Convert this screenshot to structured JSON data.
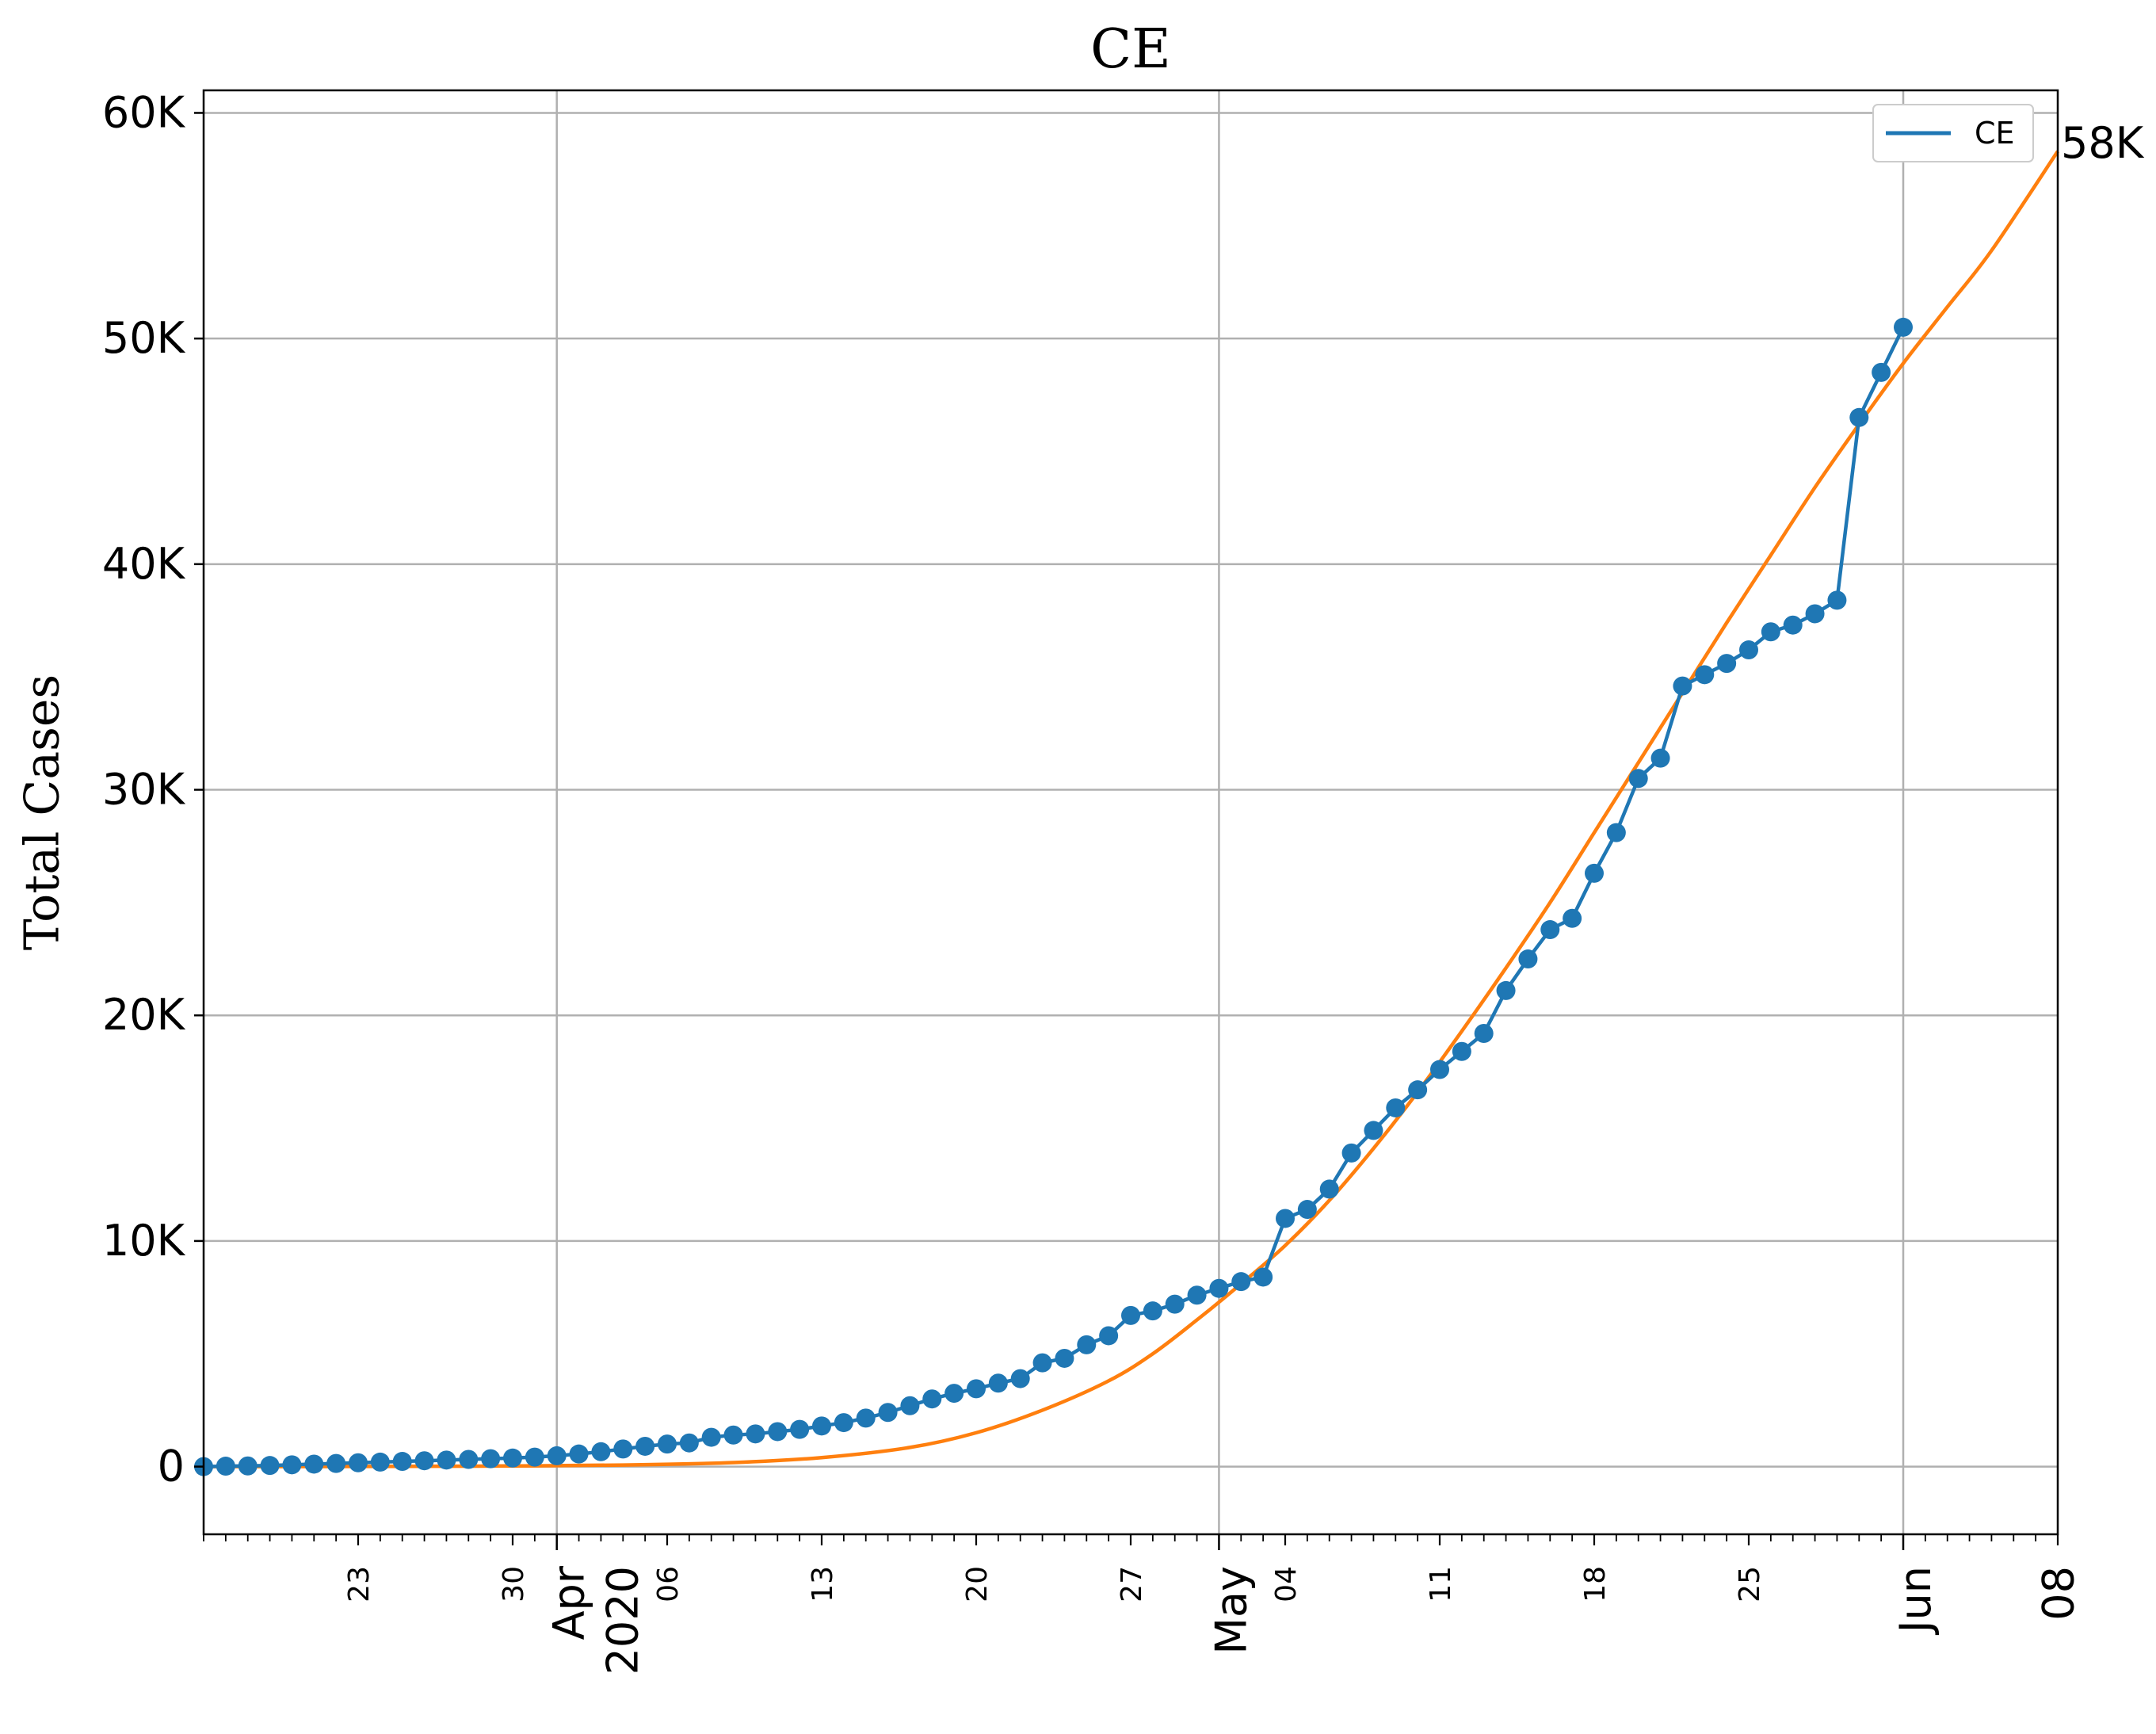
{
  "chart_data": {
    "type": "line",
    "title": "CE",
    "xlabel": "",
    "ylabel": "Total Cases",
    "x_range": [
      "2020-03-16",
      "2020-06-08"
    ],
    "ylim": [
      -3000,
      61000
    ],
    "y_ticks": [
      {
        "value": 0,
        "label": "0"
      },
      {
        "value": 10000,
        "label": "10K"
      },
      {
        "value": 20000,
        "label": "20K"
      },
      {
        "value": 30000,
        "label": "30K"
      },
      {
        "value": 40000,
        "label": "40K"
      },
      {
        "value": 50000,
        "label": "50K"
      },
      {
        "value": 60000,
        "label": "60K"
      }
    ],
    "x_minor_labels": [
      {
        "date": "2020-03-23",
        "label": "23"
      },
      {
        "date": "2020-03-30",
        "label": "30"
      },
      {
        "date": "2020-04-06",
        "label": "06"
      },
      {
        "date": "2020-04-13",
        "label": "13"
      },
      {
        "date": "2020-04-20",
        "label": "20"
      },
      {
        "date": "2020-04-27",
        "label": "27"
      },
      {
        "date": "2020-05-04",
        "label": "04"
      },
      {
        "date": "2020-05-11",
        "label": "11"
      },
      {
        "date": "2020-05-18",
        "label": "18"
      },
      {
        "date": "2020-05-25",
        "label": "25"
      },
      {
        "date": "2020-06-08",
        "label": "08"
      }
    ],
    "x_major_labels": [
      {
        "date": "2020-04-01",
        "label": "Apr\n2020"
      },
      {
        "date": "2020-05-01",
        "label": "May"
      },
      {
        "date": "2020-06-01",
        "label": "Jun"
      }
    ],
    "grid": true,
    "legend": {
      "position": "top-right",
      "entries": [
        "CE"
      ]
    },
    "end_annotation": "58K",
    "colors": {
      "observed": "#1f77b4",
      "fit": "#ff7f0e",
      "grid": "#b0b0b0"
    },
    "series": [
      {
        "name": "CE",
        "kind": "observed",
        "x": [
          "2020-03-16",
          "2020-03-17",
          "2020-03-18",
          "2020-03-19",
          "2020-03-20",
          "2020-03-21",
          "2020-03-22",
          "2020-03-23",
          "2020-03-24",
          "2020-03-25",
          "2020-03-26",
          "2020-03-27",
          "2020-03-28",
          "2020-03-29",
          "2020-03-30",
          "2020-03-31",
          "2020-04-01",
          "2020-04-02",
          "2020-04-03",
          "2020-04-04",
          "2020-04-05",
          "2020-04-06",
          "2020-04-07",
          "2020-04-08",
          "2020-04-09",
          "2020-04-10",
          "2020-04-11",
          "2020-04-12",
          "2020-04-13",
          "2020-04-14",
          "2020-04-15",
          "2020-04-16",
          "2020-04-17",
          "2020-04-18",
          "2020-04-19",
          "2020-04-20",
          "2020-04-21",
          "2020-04-22",
          "2020-04-23",
          "2020-04-24",
          "2020-04-25",
          "2020-04-26",
          "2020-04-27",
          "2020-04-28",
          "2020-04-29",
          "2020-04-30",
          "2020-05-01",
          "2020-05-02",
          "2020-05-03",
          "2020-05-04",
          "2020-05-05",
          "2020-05-06",
          "2020-05-07",
          "2020-05-08",
          "2020-05-09",
          "2020-05-10",
          "2020-05-11",
          "2020-05-12",
          "2020-05-13",
          "2020-05-14",
          "2020-05-15",
          "2020-05-16",
          "2020-05-17",
          "2020-05-18",
          "2020-05-19",
          "2020-05-20",
          "2020-05-21",
          "2020-05-22",
          "2020-05-23",
          "2020-05-24",
          "2020-05-25",
          "2020-05-26",
          "2020-05-27",
          "2020-05-28",
          "2020-05-29",
          "2020-05-30",
          "2020-05-31",
          "2020-06-01"
        ],
        "y": [
          0,
          20,
          30,
          50,
          80,
          110,
          140,
          170,
          200,
          230,
          260,
          290,
          320,
          350,
          380,
          420,
          480,
          560,
          660,
          780,
          900,
          1000,
          1050,
          1300,
          1400,
          1450,
          1550,
          1650,
          1800,
          1950,
          2150,
          2400,
          2700,
          3000,
          3250,
          3450,
          3700,
          3900,
          4600,
          4800,
          5400,
          5800,
          6700,
          6900,
          7200,
          7600,
          7900,
          8200,
          8400,
          11000,
          11400,
          12300,
          13900,
          14900,
          15900,
          16700,
          17600,
          18400,
          19200,
          21100,
          22500,
          23800,
          24300,
          26300,
          28100,
          30500,
          31400,
          34600,
          35100,
          35600,
          36200,
          37000,
          37300,
          37800,
          38400,
          46500,
          48500,
          50500
        ]
      },
      {
        "name": "",
        "kind": "fit",
        "x": [
          "2020-03-16",
          "2020-03-25",
          "2020-03-30",
          "2020-04-04",
          "2020-04-09",
          "2020-04-13",
          "2020-04-17",
          "2020-04-20",
          "2020-04-23",
          "2020-04-26",
          "2020-04-28",
          "2020-04-30",
          "2020-05-02",
          "2020-05-04",
          "2020-05-06",
          "2020-05-08",
          "2020-05-10",
          "2020-05-12",
          "2020-05-14",
          "2020-05-16",
          "2020-05-18",
          "2020-05-20",
          "2020-05-22",
          "2020-05-24",
          "2020-05-26",
          "2020-05-28",
          "2020-05-30",
          "2020-06-01",
          "2020-06-03",
          "2020-06-05",
          "2020-06-08"
        ],
        "y": [
          0,
          10,
          30,
          70,
          180,
          400,
          850,
          1500,
          2500,
          3800,
          5000,
          6500,
          8100,
          9800,
          11800,
          14100,
          16600,
          19300,
          22100,
          25000,
          28100,
          31200,
          34300,
          37400,
          40400,
          43400,
          46200,
          48900,
          51400,
          53900,
          58300
        ]
      }
    ]
  }
}
